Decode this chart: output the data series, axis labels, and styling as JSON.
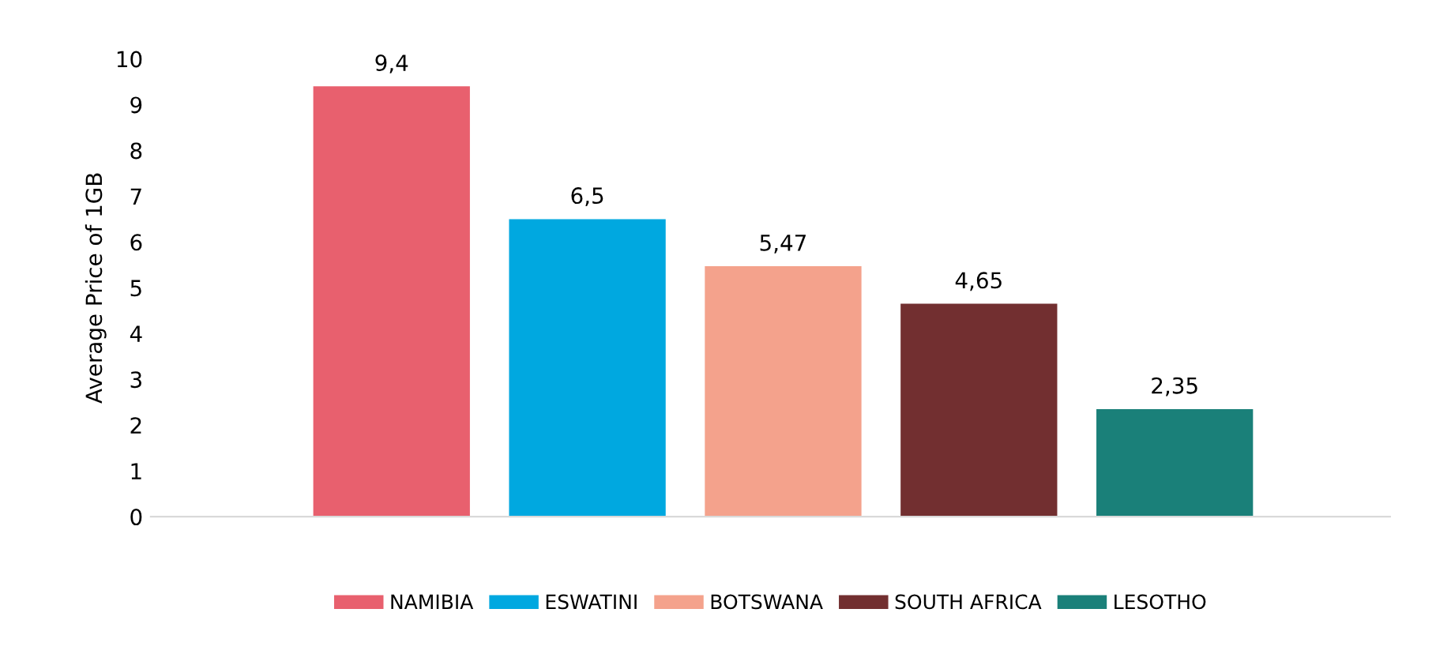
{
  "chart_data": {
    "type": "bar",
    "ylabel": "Average Price of 1GB",
    "categories": [
      null,
      null,
      null,
      null,
      null
    ],
    "series": [
      {
        "name": "NAMIBIA",
        "color": "#e8606e",
        "values": [
          9.4,
          null,
          null,
          null,
          null
        ],
        "value_labels": [
          "9,4",
          null,
          null,
          null,
          null
        ]
      },
      {
        "name": "ESWATINI",
        "color": "#00a8e0",
        "values": [
          null,
          6.5,
          null,
          null,
          null
        ],
        "value_labels": [
          null,
          "6,5",
          null,
          null,
          null
        ]
      },
      {
        "name": "BOTSWANA",
        "color": "#f4a28c",
        "values": [
          null,
          null,
          5.47,
          null,
          null
        ],
        "value_labels": [
          null,
          null,
          "5,47",
          null,
          null
        ]
      },
      {
        "name": "SOUTH AFRICA",
        "color": "#722f30",
        "values": [
          null,
          null,
          null,
          4.65,
          null
        ],
        "value_labels": [
          null,
          null,
          null,
          "4,65",
          null
        ]
      },
      {
        "name": "LESOTHO",
        "color": "#1a8079",
        "values": [
          null,
          null,
          null,
          null,
          2.35
        ],
        "value_labels": [
          null,
          null,
          null,
          null,
          "2,35"
        ]
      }
    ],
    "ylim": [
      0,
      10
    ],
    "yticks": [
      0,
      1,
      2,
      3,
      4,
      5,
      6,
      7,
      8,
      9,
      10
    ],
    "grid": false,
    "legend": "bottom"
  }
}
